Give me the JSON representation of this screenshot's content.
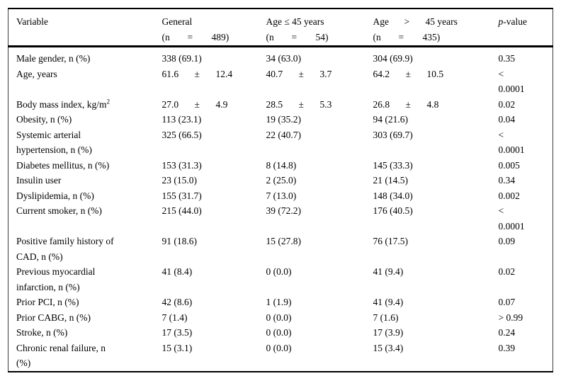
{
  "page": {
    "background": "#ffffff",
    "text_color": "#000000",
    "rule_color": "#000000"
  },
  "table": {
    "header": [
      {
        "line1": "Variable",
        "line2": null
      },
      {
        "line1": "General",
        "line2": [
          "(n",
          "=",
          "489)"
        ]
      },
      {
        "line1": "Age ≤ 45 years",
        "line2": [
          "(n",
          "=",
          "54)"
        ]
      },
      {
        "line1": [
          "Age",
          ">",
          "45 years"
        ],
        "line2": [
          "(n",
          "=",
          "435)"
        ]
      },
      {
        "line1_italic": "p",
        "line1_rest": "-value",
        "line2": null
      }
    ],
    "column_keys": [
      "variable",
      "general",
      "age_le",
      "age_gt",
      "p"
    ],
    "rows": [
      {
        "variable": "Male gender, n (%)",
        "general": "338 (69.1)",
        "age_le": "34 (63.0)",
        "age_gt": "304 (69.9)",
        "p": "0.35"
      },
      {
        "variable": "Age, years",
        "general": [
          "61.6",
          "±",
          "12.4"
        ],
        "age_le": [
          "40.7",
          "±",
          "3.7"
        ],
        "age_gt": [
          "64.2",
          "±",
          "10.5"
        ],
        "p": "<\n0.0001"
      },
      {
        "variable": "Body mass index, kg/m",
        "variable_sup": "2",
        "general": [
          "27.0",
          "±",
          "4.9"
        ],
        "age_le": [
          "28.5",
          "±",
          "5.3"
        ],
        "age_gt": [
          "26.8",
          "±",
          "4.8"
        ],
        "p": "0.02"
      },
      {
        "variable": "Obesity, n (%)",
        "general": "113 (23.1)",
        "age_le": "19 (35.2)",
        "age_gt": "94 (21.6)",
        "p": "0.04"
      },
      {
        "variable": "Systemic arterial\nhypertension, n (%)",
        "general": "325 (66.5)",
        "age_le": "22 (40.7)",
        "age_gt": "303 (69.7)",
        "p": "<\n0.0001"
      },
      {
        "variable": "Diabetes mellitus, n (%)",
        "general": "153 (31.3)",
        "age_le": "8 (14.8)",
        "age_gt": "145 (33.3)",
        "p": "0.005"
      },
      {
        "variable": "Insulin user",
        "general": "23 (15.0)",
        "age_le": "2 (25.0)",
        "age_gt": "21 (14.5)",
        "p": "0.34"
      },
      {
        "variable": "Dyslipidemia, n (%)",
        "general": "155 (31.7)",
        "age_le": "7 (13.0)",
        "age_gt": "148 (34.0)",
        "p": "0.002"
      },
      {
        "variable": "Current smoker, n (%)",
        "general": "215 (44.0)",
        "age_le": "39 (72.2)",
        "age_gt": "176 (40.5)",
        "p": "<\n0.0001"
      },
      {
        "variable": "Positive family history of\nCAD, n (%)",
        "general": "91 (18.6)",
        "age_le": "15 (27.8)",
        "age_gt": "76 (17.5)",
        "p": "0.09"
      },
      {
        "variable": "Previous myocardial\ninfarction, n (%)",
        "general": "41 (8.4)",
        "age_le": "0 (0.0)",
        "age_gt": "41 (9.4)",
        "p": "0.02"
      },
      {
        "variable": "Prior PCI, n (%)",
        "general": "42 (8.6)",
        "age_le": "1 (1.9)",
        "age_gt": "41 (9.4)",
        "p": "0.07"
      },
      {
        "variable": "Prior CABG, n (%)",
        "general": "7 (1.4)",
        "age_le": "0 (0.0)",
        "age_gt": "7 (1.6)",
        "p": "> 0.99"
      },
      {
        "variable": "Stroke, n (%)",
        "general": "17 (3.5)",
        "age_le": "0 (0.0)",
        "age_gt": "17 (3.9)",
        "p": "0.24"
      },
      {
        "variable": "Chronic renal failure, n\n(%)",
        "general": "15 (3.1)",
        "age_le": "0 (0.0)",
        "age_gt": "15 (3.4)",
        "p": "0.39"
      }
    ]
  }
}
